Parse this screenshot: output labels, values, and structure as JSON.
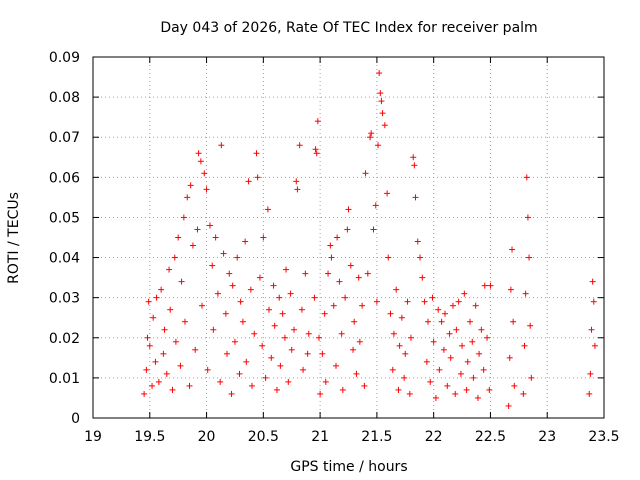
{
  "chart_data": {
    "type": "scatter",
    "title": "Day 043 of 2026, Rate Of TEC Index for receiver palm",
    "xlabel": "GPS time / hours",
    "ylabel": "ROTI / TECUs",
    "xlim": [
      19,
      23.5
    ],
    "ylim": [
      0,
      0.09
    ],
    "xticks": [
      19,
      19.5,
      20,
      20.5,
      21,
      21.5,
      22,
      22.5,
      23,
      23.5
    ],
    "xtick_labels": [
      "19",
      "19.5",
      "20",
      "20.5",
      "21",
      "21.5",
      "22",
      "22.5",
      "23",
      "23.5"
    ],
    "yticks": [
      0,
      0.01,
      0.02,
      0.03,
      0.04,
      0.05,
      0.06,
      0.07,
      0.08,
      0.09
    ],
    "ytick_labels": [
      "0",
      "0.01",
      "0.02",
      "0.03",
      "0.04",
      "0.05",
      "0.06",
      "0.07",
      "0.08",
      "0.09"
    ],
    "grid": true,
    "marker": "+",
    "marker_color": "#ff0000",
    "series": [
      {
        "name": "ROTI",
        "points": [
          [
            19.45,
            0.006
          ],
          [
            19.47,
            0.012
          ],
          [
            19.48,
            0.02
          ],
          [
            19.49,
            0.029
          ],
          [
            19.5,
            0.018
          ],
          [
            19.52,
            0.008
          ],
          [
            19.53,
            0.025
          ],
          [
            19.55,
            0.014
          ],
          [
            19.56,
            0.03
          ],
          [
            19.58,
            0.009
          ],
          [
            19.6,
            0.032
          ],
          [
            19.62,
            0.016
          ],
          [
            19.63,
            0.022
          ],
          [
            19.65,
            0.011
          ],
          [
            19.67,
            0.037
          ],
          [
            19.68,
            0.027
          ],
          [
            19.7,
            0.007
          ],
          [
            19.72,
            0.04
          ],
          [
            19.73,
            0.019
          ],
          [
            19.75,
            0.045
          ],
          [
            19.77,
            0.013
          ],
          [
            19.78,
            0.034
          ],
          [
            19.8,
            0.05
          ],
          [
            19.81,
            0.024
          ],
          [
            19.83,
            0.055
          ],
          [
            19.85,
            0.008
          ],
          [
            19.86,
            0.058
          ],
          [
            19.88,
            0.043
          ],
          [
            19.9,
            0.017
          ],
          [
            19.92,
            0.047
          ],
          [
            19.93,
            0.066
          ],
          [
            19.95,
            0.064
          ],
          [
            19.96,
            0.028
          ],
          [
            19.98,
            0.061
          ],
          [
            20.0,
            0.057
          ],
          [
            20.01,
            0.012
          ],
          [
            20.03,
            0.048
          ],
          [
            20.05,
            0.038
          ],
          [
            20.06,
            0.022
          ],
          [
            20.08,
            0.045
          ],
          [
            20.1,
            0.031
          ],
          [
            20.12,
            0.009
          ],
          [
            20.13,
            0.068
          ],
          [
            20.15,
            0.041
          ],
          [
            20.17,
            0.026
          ],
          [
            20.18,
            0.016
          ],
          [
            20.2,
            0.036
          ],
          [
            20.22,
            0.006
          ],
          [
            20.23,
            0.033
          ],
          [
            20.25,
            0.019
          ],
          [
            20.27,
            0.04
          ],
          [
            20.29,
            0.011
          ],
          [
            20.3,
            0.029
          ],
          [
            20.32,
            0.024
          ],
          [
            20.34,
            0.044
          ],
          [
            20.35,
            0.014
          ],
          [
            20.37,
            0.059
          ],
          [
            20.39,
            0.032
          ],
          [
            20.4,
            0.008
          ],
          [
            20.42,
            0.021
          ],
          [
            20.44,
            0.066
          ],
          [
            20.45,
            0.06
          ],
          [
            20.47,
            0.035
          ],
          [
            20.49,
            0.018
          ],
          [
            20.5,
            0.045
          ],
          [
            20.52,
            0.01
          ],
          [
            20.54,
            0.052
          ],
          [
            20.55,
            0.027
          ],
          [
            20.57,
            0.015
          ],
          [
            20.59,
            0.033
          ],
          [
            20.6,
            0.023
          ],
          [
            20.62,
            0.007
          ],
          [
            20.64,
            0.03
          ],
          [
            20.65,
            0.013
          ],
          [
            20.67,
            0.026
          ],
          [
            20.69,
            0.02
          ],
          [
            20.7,
            0.037
          ],
          [
            20.72,
            0.009
          ],
          [
            20.74,
            0.031
          ],
          [
            20.75,
            0.017
          ],
          [
            20.77,
            0.022
          ],
          [
            20.79,
            0.059
          ],
          [
            20.8,
            0.057
          ],
          [
            20.82,
            0.068
          ],
          [
            20.84,
            0.027
          ],
          [
            20.85,
            0.012
          ],
          [
            20.87,
            0.036
          ],
          [
            20.89,
            0.016
          ],
          [
            20.9,
            0.021
          ],
          [
            20.95,
            0.03
          ],
          [
            20.96,
            0.067
          ],
          [
            20.97,
            0.066
          ],
          [
            20.98,
            0.074
          ],
          [
            20.99,
            0.02
          ],
          [
            21.0,
            0.006
          ],
          [
            21.02,
            0.016
          ],
          [
            21.04,
            0.026
          ],
          [
            21.05,
            0.009
          ],
          [
            21.07,
            0.036
          ],
          [
            21.09,
            0.043
          ],
          [
            21.1,
            0.04
          ],
          [
            21.12,
            0.028
          ],
          [
            21.14,
            0.013
          ],
          [
            21.15,
            0.045
          ],
          [
            21.17,
            0.034
          ],
          [
            21.19,
            0.021
          ],
          [
            21.2,
            0.007
          ],
          [
            21.22,
            0.03
          ],
          [
            21.24,
            0.047
          ],
          [
            21.25,
            0.052
          ],
          [
            21.27,
            0.038
          ],
          [
            21.29,
            0.017
          ],
          [
            21.3,
            0.024
          ],
          [
            21.32,
            0.011
          ],
          [
            21.34,
            0.035
          ],
          [
            21.35,
            0.019
          ],
          [
            21.37,
            0.028
          ],
          [
            21.39,
            0.008
          ],
          [
            21.4,
            0.061
          ],
          [
            21.42,
            0.036
          ],
          [
            21.44,
            0.07
          ],
          [
            21.45,
            0.071
          ],
          [
            21.47,
            0.047
          ],
          [
            21.49,
            0.053
          ],
          [
            21.5,
            0.029
          ],
          [
            21.51,
            0.068
          ],
          [
            21.52,
            0.086
          ],
          [
            21.53,
            0.081
          ],
          [
            21.54,
            0.079
          ],
          [
            21.55,
            0.076
          ],
          [
            21.57,
            0.073
          ],
          [
            21.59,
            0.056
          ],
          [
            21.6,
            0.04
          ],
          [
            21.62,
            0.026
          ],
          [
            21.64,
            0.012
          ],
          [
            21.65,
            0.021
          ],
          [
            21.67,
            0.032
          ],
          [
            21.69,
            0.007
          ],
          [
            21.7,
            0.018
          ],
          [
            21.72,
            0.025
          ],
          [
            21.74,
            0.01
          ],
          [
            21.75,
            0.016
          ],
          [
            21.77,
            0.029
          ],
          [
            21.79,
            0.006
          ],
          [
            21.8,
            0.02
          ],
          [
            21.82,
            0.065
          ],
          [
            21.83,
            0.063
          ],
          [
            21.84,
            0.055
          ],
          [
            21.86,
            0.044
          ],
          [
            21.88,
            0.04
          ],
          [
            21.9,
            0.035
          ],
          [
            21.92,
            0.029
          ],
          [
            21.94,
            0.014
          ],
          [
            21.95,
            0.024
          ],
          [
            21.97,
            0.009
          ],
          [
            21.99,
            0.03
          ],
          [
            22.0,
            0.019
          ],
          [
            22.02,
            0.005
          ],
          [
            22.04,
            0.027
          ],
          [
            22.05,
            0.012
          ],
          [
            22.07,
            0.024
          ],
          [
            22.09,
            0.017
          ],
          [
            22.1,
            0.026
          ],
          [
            22.12,
            0.008
          ],
          [
            22.14,
            0.021
          ],
          [
            22.15,
            0.015
          ],
          [
            22.17,
            0.028
          ],
          [
            22.19,
            0.006
          ],
          [
            22.2,
            0.022
          ],
          [
            22.22,
            0.029
          ],
          [
            22.24,
            0.011
          ],
          [
            22.25,
            0.018
          ],
          [
            22.27,
            0.031
          ],
          [
            22.29,
            0.007
          ],
          [
            22.3,
            0.014
          ],
          [
            22.32,
            0.024
          ],
          [
            22.34,
            0.019
          ],
          [
            22.35,
            0.01
          ],
          [
            22.37,
            0.028
          ],
          [
            22.39,
            0.005
          ],
          [
            22.4,
            0.016
          ],
          [
            22.42,
            0.022
          ],
          [
            22.44,
            0.012
          ],
          [
            22.45,
            0.033
          ],
          [
            22.47,
            0.02
          ],
          [
            22.49,
            0.007
          ],
          [
            22.5,
            0.033
          ],
          [
            22.66,
            0.003
          ],
          [
            22.67,
            0.015
          ],
          [
            22.68,
            0.032
          ],
          [
            22.69,
            0.042
          ],
          [
            22.7,
            0.024
          ],
          [
            22.71,
            0.008
          ],
          [
            22.79,
            0.006
          ],
          [
            22.8,
            0.018
          ],
          [
            22.81,
            0.031
          ],
          [
            22.82,
            0.06
          ],
          [
            22.83,
            0.05
          ],
          [
            22.84,
            0.04
          ],
          [
            22.85,
            0.023
          ],
          [
            22.86,
            0.01
          ],
          [
            23.37,
            0.006
          ],
          [
            23.38,
            0.011
          ],
          [
            23.39,
            0.022
          ],
          [
            23.4,
            0.034
          ],
          [
            23.41,
            0.029
          ],
          [
            23.42,
            0.018
          ]
        ]
      }
    ]
  }
}
